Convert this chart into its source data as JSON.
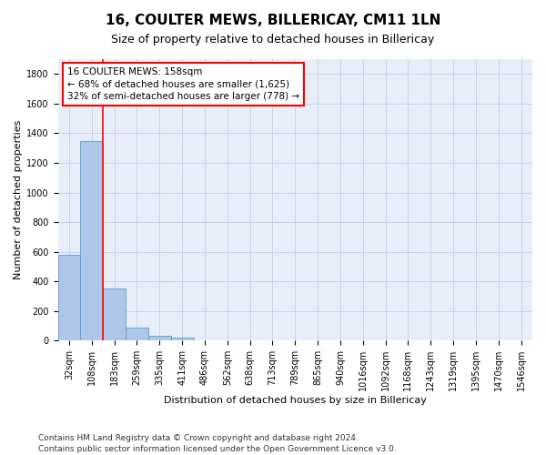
{
  "title": "16, COULTER MEWS, BILLERICAY, CM11 1LN",
  "subtitle": "Size of property relative to detached houses in Billericay",
  "xlabel": "Distribution of detached houses by size in Billericay",
  "ylabel": "Number of detached properties",
  "bar_labels": [
    "32sqm",
    "108sqm",
    "183sqm",
    "259sqm",
    "335sqm",
    "411sqm",
    "486sqm",
    "562sqm",
    "638sqm",
    "713sqm",
    "789sqm",
    "865sqm",
    "940sqm",
    "1016sqm",
    "1092sqm",
    "1168sqm",
    "1243sqm",
    "1319sqm",
    "1395sqm",
    "1470sqm",
    "1546sqm"
  ],
  "bar_values": [
    580,
    1350,
    350,
    90,
    30,
    22,
    0,
    0,
    0,
    0,
    0,
    0,
    0,
    0,
    0,
    0,
    0,
    0,
    0,
    0,
    0
  ],
  "bar_color": "#aec6e8",
  "bar_edge_color": "#5b9bd5",
  "vline_color": "red",
  "vline_pos": 1.5,
  "ylim": [
    0,
    1900
  ],
  "yticks": [
    0,
    200,
    400,
    600,
    800,
    1000,
    1200,
    1400,
    1600,
    1800
  ],
  "annotation_line1": "16 COULTER MEWS: 158sqm",
  "annotation_line2": "← 68% of detached houses are smaller (1,625)",
  "annotation_line3": "32% of semi-detached houses are larger (778) →",
  "footer_line1": "Contains HM Land Registry data © Crown copyright and database right 2024.",
  "footer_line2": "Contains public sector information licensed under the Open Government Licence v3.0.",
  "grid_color": "#c8d4e8",
  "bg_color": "#e8eef8",
  "title_fontsize": 11,
  "subtitle_fontsize": 9,
  "axis_label_fontsize": 8,
  "tick_fontsize": 7,
  "annotation_fontsize": 7.5,
  "footer_fontsize": 6.5
}
